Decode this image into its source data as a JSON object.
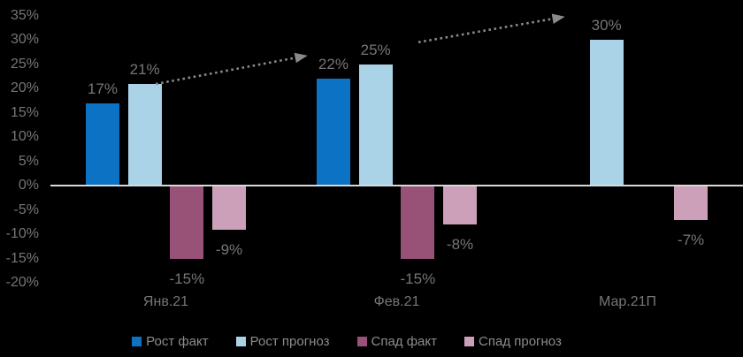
{
  "chart_data": {
    "type": "bar",
    "title": "",
    "xlabel": "",
    "ylabel": "",
    "categories": [
      "Янв.21",
      "Фев.21",
      "Мар.21П"
    ],
    "series": [
      {
        "name": "Рост факт",
        "color": "#0b72c4",
        "values": [
          17,
          22,
          null
        ]
      },
      {
        "name": "Рост прогноз",
        "color": "#aad3e8",
        "values": [
          21,
          25,
          30
        ]
      },
      {
        "name": "Спад факт",
        "color": "#985277",
        "values": [
          -15,
          -15,
          null
        ]
      },
      {
        "name": "Спад прогноз",
        "color": "#cda0ba",
        "values": [
          -9,
          -8,
          -7
        ]
      }
    ],
    "data_labels": [
      [
        "17%",
        "22%",
        null
      ],
      [
        "21%",
        "25%",
        "30%"
      ],
      [
        "-15%",
        "-15%",
        null
      ],
      [
        "-9%",
        "-8%",
        "-7%"
      ]
    ],
    "ylim": [
      -20,
      35
    ],
    "ytick_values": [
      35,
      30,
      25,
      20,
      15,
      10,
      5,
      0,
      -5,
      -10,
      -15,
      -20
    ],
    "ytick_labels": [
      "35%",
      "30%",
      "25%",
      "20%",
      "15%",
      "10%",
      "5%",
      "0%",
      "-5%",
      "-10%",
      "-15%",
      "-20%"
    ],
    "grid": false,
    "legend_position": "bottom",
    "colors": {
      "background": "#000000",
      "axis_line": "#d9d9d9",
      "text": "#767676",
      "legend_text": "#8c8c8c",
      "arrow": "#8a8a8a"
    },
    "annotations": [
      {
        "type": "dotted-arrow",
        "from": [
          0.456,
          20.9
        ],
        "to": [
          1.107,
          26.7
        ]
      },
      {
        "type": "dotted-arrow",
        "from": [
          1.594,
          29.5
        ],
        "to": [
          2.222,
          34.7
        ]
      }
    ]
  }
}
